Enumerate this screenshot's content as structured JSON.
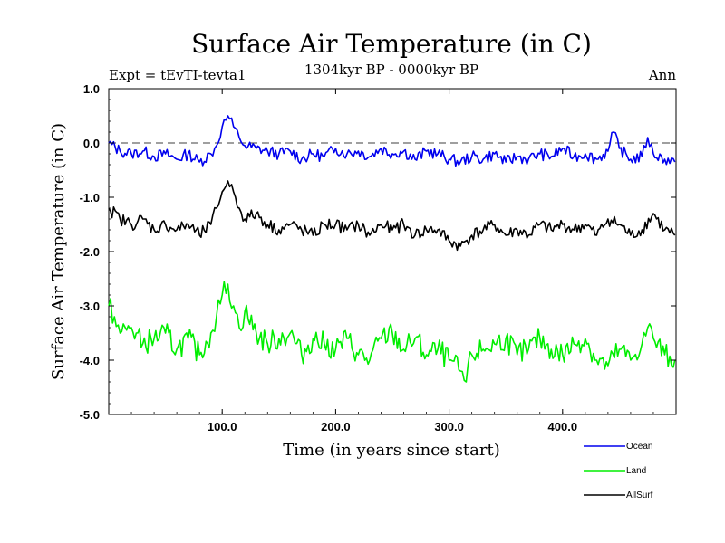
{
  "chart_data": {
    "type": "line",
    "title": "Surface Air Temperature (in C)",
    "subtitle": "1304kyr BP - 0000kyr BP",
    "left_label": "Expt = tEvTI-tevta1",
    "right_label": "Ann",
    "xlabel": "Time (in years since start)",
    "ylabel": "Surface Air Temperature (in C)",
    "xlim": [
      0,
      500
    ],
    "ylim": [
      -5.0,
      1.0
    ],
    "xticks": [
      100,
      200,
      300,
      400
    ],
    "xtick_labels": [
      "100.0",
      "200.0",
      "300.0",
      "400.0"
    ],
    "yticks": [
      1.0,
      0.0,
      -1.0,
      -2.0,
      -3.0,
      -4.0,
      -5.0
    ],
    "ytick_labels": [
      "1.0",
      "0.0",
      "-1.0",
      "-2.0",
      "-3.0",
      "-4.0",
      "-5.0"
    ],
    "reference_line": 0.0,
    "series": [
      {
        "name": "Ocean",
        "color": "#0000ee",
        "x": [
          0,
          10,
          20,
          30,
          40,
          50,
          60,
          70,
          80,
          90,
          95,
          100,
          105,
          110,
          115,
          120,
          130,
          140,
          150,
          160,
          170,
          180,
          190,
          200,
          210,
          220,
          230,
          240,
          250,
          260,
          270,
          280,
          290,
          300,
          310,
          320,
          330,
          340,
          350,
          360,
          370,
          380,
          390,
          400,
          410,
          420,
          430,
          440,
          445,
          450,
          460,
          470,
          475,
          480,
          490,
          499
        ],
        "values": [
          0.0,
          -0.15,
          -0.2,
          -0.15,
          -0.25,
          -0.2,
          -0.3,
          -0.2,
          -0.35,
          -0.2,
          -0.05,
          0.3,
          0.5,
          0.3,
          0.1,
          -0.05,
          -0.1,
          -0.15,
          -0.2,
          -0.15,
          -0.3,
          -0.2,
          -0.25,
          -0.1,
          -0.2,
          -0.15,
          -0.25,
          -0.1,
          -0.2,
          -0.15,
          -0.3,
          -0.15,
          -0.2,
          -0.3,
          -0.35,
          -0.25,
          -0.3,
          -0.2,
          -0.35,
          -0.25,
          -0.3,
          -0.2,
          -0.25,
          -0.1,
          -0.25,
          -0.2,
          -0.3,
          -0.15,
          0.2,
          -0.1,
          -0.3,
          -0.25,
          0.1,
          -0.2,
          -0.3,
          -0.35
        ]
      },
      {
        "name": "Land",
        "color": "#00ee00",
        "x": [
          0,
          5,
          10,
          20,
          30,
          40,
          50,
          60,
          70,
          80,
          90,
          95,
          100,
          105,
          110,
          115,
          120,
          130,
          140,
          150,
          160,
          170,
          180,
          190,
          200,
          210,
          220,
          230,
          240,
          250,
          260,
          270,
          280,
          290,
          300,
          310,
          315,
          320,
          330,
          340,
          350,
          360,
          370,
          380,
          390,
          400,
          410,
          420,
          430,
          440,
          450,
          460,
          470,
          475,
          480,
          490,
          499
        ],
        "values": [
          -3.0,
          -3.2,
          -3.5,
          -3.4,
          -3.7,
          -3.6,
          -3.5,
          -3.8,
          -3.6,
          -3.9,
          -3.5,
          -3.2,
          -2.8,
          -2.6,
          -3.0,
          -3.4,
          -3.1,
          -3.5,
          -3.7,
          -3.6,
          -3.5,
          -3.9,
          -3.6,
          -3.7,
          -3.8,
          -3.6,
          -3.9,
          -4.0,
          -3.6,
          -3.5,
          -3.8,
          -3.6,
          -3.9,
          -3.8,
          -4.0,
          -4.2,
          -4.4,
          -3.9,
          -3.8,
          -3.7,
          -3.6,
          -3.9,
          -3.8,
          -3.6,
          -3.8,
          -3.9,
          -3.7,
          -3.6,
          -4.0,
          -4.1,
          -3.8,
          -4.0,
          -3.7,
          -3.4,
          -3.6,
          -3.9,
          -4.0
        ]
      },
      {
        "name": "AllSurf",
        "color": "#000000",
        "x": [
          0,
          10,
          20,
          30,
          40,
          50,
          60,
          70,
          80,
          90,
          95,
          100,
          105,
          110,
          115,
          120,
          130,
          140,
          150,
          160,
          170,
          180,
          190,
          200,
          210,
          220,
          230,
          240,
          250,
          260,
          270,
          280,
          290,
          300,
          310,
          320,
          330,
          340,
          350,
          360,
          370,
          380,
          390,
          400,
          410,
          420,
          430,
          440,
          450,
          460,
          470,
          480,
          490,
          499
        ],
        "values": [
          -1.2,
          -1.4,
          -1.5,
          -1.4,
          -1.6,
          -1.5,
          -1.6,
          -1.5,
          -1.7,
          -1.5,
          -1.2,
          -0.9,
          -0.7,
          -0.9,
          -1.2,
          -1.4,
          -1.3,
          -1.5,
          -1.6,
          -1.5,
          -1.6,
          -1.7,
          -1.5,
          -1.5,
          -1.6,
          -1.5,
          -1.7,
          -1.5,
          -1.6,
          -1.5,
          -1.7,
          -1.6,
          -1.6,
          -1.8,
          -1.9,
          -1.7,
          -1.6,
          -1.5,
          -1.7,
          -1.6,
          -1.7,
          -1.5,
          -1.6,
          -1.5,
          -1.6,
          -1.5,
          -1.7,
          -1.4,
          -1.5,
          -1.7,
          -1.6,
          -1.3,
          -1.6,
          -1.7
        ]
      }
    ],
    "legend": {
      "placement": "bottom-right",
      "entries": [
        "Ocean",
        "Land",
        "AllSurf"
      ]
    }
  }
}
